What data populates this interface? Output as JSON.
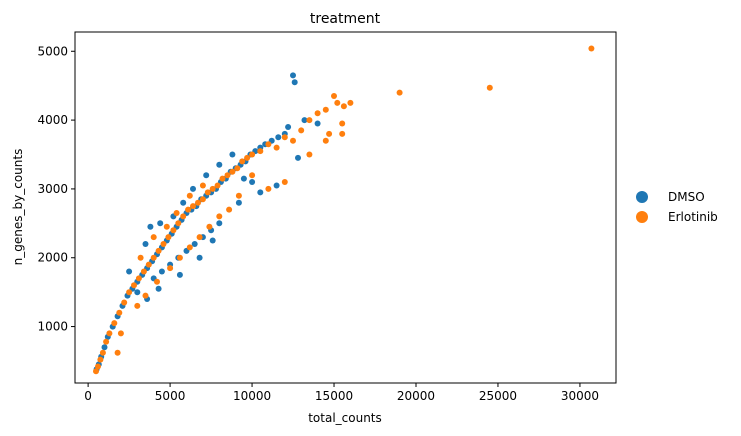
{
  "chart_data": {
    "type": "scatter",
    "title": "treatment",
    "xlabel": "total_counts",
    "ylabel": "n_genes_by_counts",
    "xlim": [
      -800,
      32200
    ],
    "ylim": [
      180,
      5280
    ],
    "xticks": [
      0,
      5000,
      10000,
      15000,
      20000,
      25000,
      30000
    ],
    "yticks": [
      1000,
      2000,
      3000,
      4000,
      5000
    ],
    "grid": false,
    "legend_position": "right",
    "series": [
      {
        "name": "DMSO",
        "color": "#1f77b4",
        "points": [
          [
            520,
            380
          ],
          [
            650,
            450
          ],
          [
            800,
            560
          ],
          [
            1000,
            700
          ],
          [
            1200,
            850
          ],
          [
            1500,
            1000
          ],
          [
            1800,
            1150
          ],
          [
            2100,
            1300
          ],
          [
            2400,
            1450
          ],
          [
            2700,
            1550
          ],
          [
            3000,
            1650
          ],
          [
            3300,
            1750
          ],
          [
            3600,
            1850
          ],
          [
            3900,
            1950
          ],
          [
            4200,
            2050
          ],
          [
            4500,
            2150
          ],
          [
            4800,
            2250
          ],
          [
            5100,
            2350
          ],
          [
            5400,
            2450
          ],
          [
            5700,
            2550
          ],
          [
            6000,
            2650
          ],
          [
            6300,
            2700
          ],
          [
            6600,
            2750
          ],
          [
            6900,
            2850
          ],
          [
            7200,
            2900
          ],
          [
            7500,
            2950
          ],
          [
            7800,
            3000
          ],
          [
            8100,
            3100
          ],
          [
            8400,
            3150
          ],
          [
            8700,
            3250
          ],
          [
            9000,
            3300
          ],
          [
            9300,
            3350
          ],
          [
            9600,
            3400
          ],
          [
            9900,
            3500
          ],
          [
            10200,
            3550
          ],
          [
            10500,
            3600
          ],
          [
            10800,
            3650
          ],
          [
            11200,
            3700
          ],
          [
            11600,
            3750
          ],
          [
            12000,
            3800
          ],
          [
            12200,
            3900
          ],
          [
            12500,
            4650
          ],
          [
            12600,
            4550
          ],
          [
            12800,
            3450
          ],
          [
            13200,
            4000
          ],
          [
            14000,
            3950
          ],
          [
            4000,
            1700
          ],
          [
            4500,
            1800
          ],
          [
            5000,
            1900
          ],
          [
            5500,
            2000
          ],
          [
            6000,
            2100
          ],
          [
            6500,
            2200
          ],
          [
            7000,
            2300
          ],
          [
            7500,
            2400
          ],
          [
            8000,
            2500
          ],
          [
            3500,
            2200
          ],
          [
            3800,
            2450
          ],
          [
            4400,
            2500
          ],
          [
            5200,
            2600
          ],
          [
            5800,
            2800
          ],
          [
            6400,
            3000
          ],
          [
            7200,
            3200
          ],
          [
            8000,
            3350
          ],
          [
            8800,
            3500
          ],
          [
            9500,
            3150
          ],
          [
            10000,
            3100
          ],
          [
            2500,
            1800
          ],
          [
            3000,
            1500
          ],
          [
            3600,
            1400
          ],
          [
            4300,
            1550
          ],
          [
            5600,
            1750
          ],
          [
            6800,
            2000
          ],
          [
            7600,
            2250
          ],
          [
            9200,
            2800
          ],
          [
            10500,
            2950
          ],
          [
            11500,
            3050
          ]
        ]
      },
      {
        "name": "Erlotinib",
        "color": "#ff7f0e",
        "points": [
          [
            480,
            350
          ],
          [
            600,
            420
          ],
          [
            750,
            520
          ],
          [
            900,
            620
          ],
          [
            1100,
            780
          ],
          [
            1300,
            900
          ],
          [
            1600,
            1050
          ],
          [
            1900,
            1200
          ],
          [
            2200,
            1350
          ],
          [
            2500,
            1500
          ],
          [
            2800,
            1600
          ],
          [
            3100,
            1700
          ],
          [
            3400,
            1800
          ],
          [
            3700,
            1900
          ],
          [
            4000,
            2000
          ],
          [
            4300,
            2100
          ],
          [
            4600,
            2200
          ],
          [
            4900,
            2300
          ],
          [
            5200,
            2400
          ],
          [
            5500,
            2500
          ],
          [
            5800,
            2600
          ],
          [
            6100,
            2700
          ],
          [
            6400,
            2750
          ],
          [
            6700,
            2800
          ],
          [
            7000,
            2850
          ],
          [
            7300,
            2950
          ],
          [
            7600,
            3000
          ],
          [
            7900,
            3050
          ],
          [
            8200,
            3150
          ],
          [
            8500,
            3200
          ],
          [
            8800,
            3250
          ],
          [
            9100,
            3300
          ],
          [
            9400,
            3400
          ],
          [
            9700,
            3450
          ],
          [
            10000,
            3500
          ],
          [
            10500,
            3550
          ],
          [
            11000,
            3650
          ],
          [
            11500,
            3600
          ],
          [
            12000,
            3750
          ],
          [
            12500,
            3700
          ],
          [
            13000,
            3850
          ],
          [
            13500,
            4000
          ],
          [
            14000,
            4100
          ],
          [
            14500,
            4150
          ],
          [
            15000,
            4350
          ],
          [
            15200,
            4250
          ],
          [
            15600,
            4200
          ],
          [
            16000,
            4250
          ],
          [
            15500,
            3950
          ],
          [
            15500,
            3800
          ],
          [
            14700,
            3800
          ],
          [
            19000,
            4400
          ],
          [
            24500,
            4470
          ],
          [
            30700,
            5040
          ],
          [
            2000,
            900
          ],
          [
            1800,
            620
          ],
          [
            3000,
            1300
          ],
          [
            3500,
            1450
          ],
          [
            4200,
            1650
          ],
          [
            5000,
            1850
          ],
          [
            5600,
            2000
          ],
          [
            6200,
            2150
          ],
          [
            6800,
            2300
          ],
          [
            7400,
            2450
          ],
          [
            8000,
            2600
          ],
          [
            8600,
            2700
          ],
          [
            9200,
            2900
          ],
          [
            10000,
            3200
          ],
          [
            11000,
            3000
          ],
          [
            12000,
            3100
          ],
          [
            13500,
            3500
          ],
          [
            14500,
            3700
          ],
          [
            3200,
            2000
          ],
          [
            4000,
            2300
          ],
          [
            4800,
            2450
          ],
          [
            5400,
            2650
          ],
          [
            6200,
            2900
          ],
          [
            7000,
            3050
          ]
        ]
      }
    ]
  }
}
